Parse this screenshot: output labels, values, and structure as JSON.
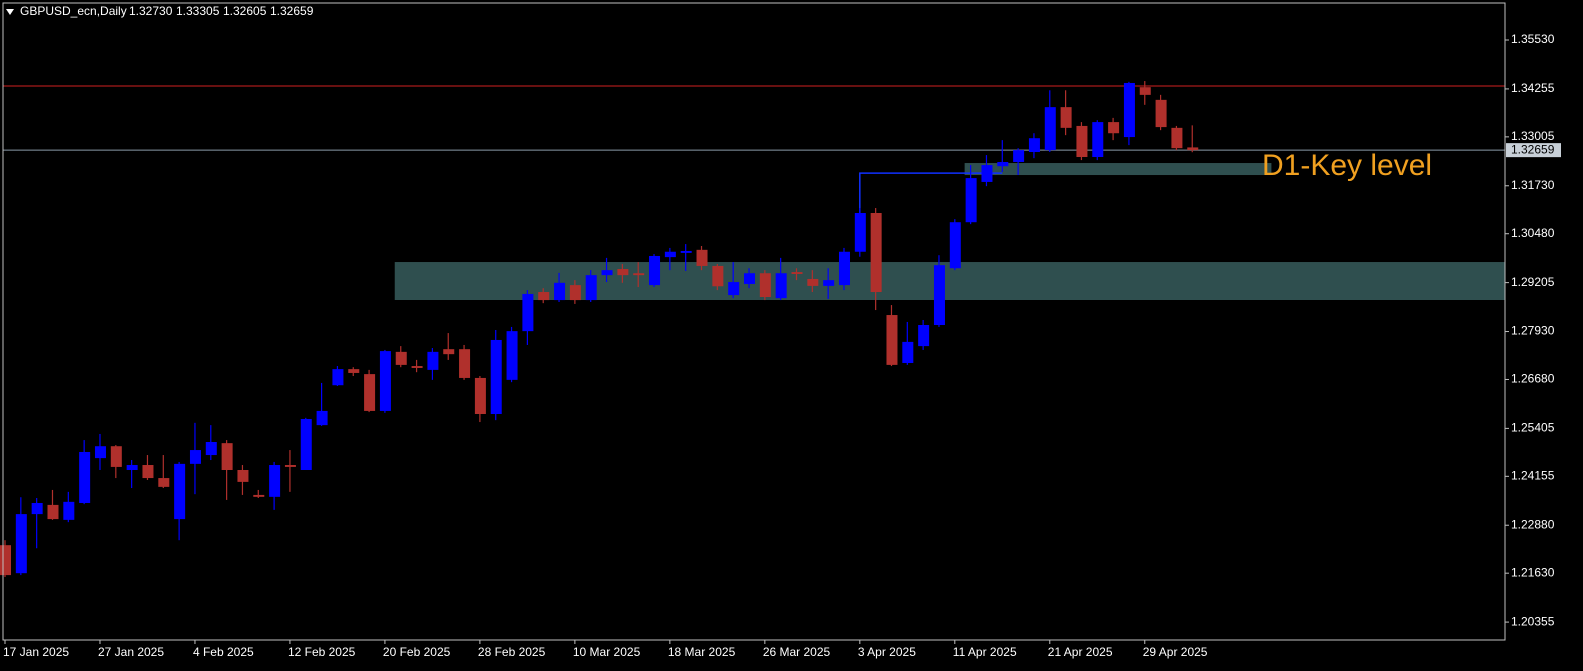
{
  "chart_data": {
    "type": "candlestick",
    "header": {
      "symbol": "GBPUSD_ecn,Daily",
      "ohlc_labels": [
        "1.32730",
        "1.33305",
        "1.32605",
        "1.32659"
      ]
    },
    "categories": [
      "17 Jan 2025",
      null,
      null,
      null,
      null,
      null,
      "27 Jan 2025",
      null,
      null,
      null,
      null,
      null,
      "4 Feb 2025",
      null,
      null,
      null,
      null,
      null,
      "12 Feb 2025",
      null,
      null,
      null,
      null,
      null,
      "20 Feb 2025",
      null,
      null,
      null,
      null,
      null,
      "28 Feb 2025",
      null,
      null,
      null,
      null,
      null,
      "10 Mar 2025",
      null,
      null,
      null,
      null,
      null,
      "18 Mar 2025",
      null,
      null,
      null,
      null,
      null,
      "26 Mar 2025",
      null,
      null,
      null,
      null,
      null,
      "3 Apr 2025",
      null,
      null,
      null,
      null,
      null,
      "11 Apr 2025",
      null,
      null,
      null,
      null,
      null,
      "21 Apr 2025",
      null,
      null,
      null,
      null,
      null,
      "29 Apr 2025",
      null,
      null,
      null
    ],
    "open": [
      1.2236,
      1.2163,
      1.2317,
      1.2341,
      1.2302,
      1.2346,
      1.2463,
      1.2494,
      1.2432,
      1.2445,
      1.2411,
      1.2304,
      1.2448,
      1.2471,
      1.2502,
      1.2432,
      1.2367,
      1.2362,
      1.2445,
      1.2432,
      1.2549,
      1.2653,
      1.2695,
      1.2682,
      1.2586,
      1.274,
      1.2703,
      1.2693,
      1.2747,
      1.2747,
      1.2672,
      1.2578,
      1.2667,
      1.2794,
      1.2896,
      1.2875,
      1.2914,
      1.2875,
      1.294,
      1.2956,
      1.2945,
      1.2914,
      1.2987,
      1.2998,
      1.3006,
      1.2964,
      1.2888,
      1.2917,
      1.2945,
      1.288,
      1.2948,
      1.293,
      1.2912,
      1.2914,
      1.3001,
      1.3102,
      1.2836,
      1.2711,
      1.2755,
      1.281,
      1.2958,
      1.3078,
      1.3183,
      1.3224,
      1.3235,
      1.3261,
      1.3266,
      1.3378,
      1.3329,
      1.3248,
      1.3339,
      1.33,
      1.343,
      1.3397,
      1.3324,
      1.3273
    ],
    "high": [
      1.2249,
      1.2361,
      1.2359,
      1.238,
      1.2375,
      1.251,
      1.2526,
      1.2497,
      1.2458,
      1.2471,
      1.2471,
      1.2453,
      1.2555,
      1.2549,
      1.251,
      1.2445,
      1.238,
      1.2453,
      1.2484,
      1.2568,
      1.2659,
      1.2703,
      1.27,
      1.2693,
      1.2745,
      1.2755,
      1.2719,
      1.275,
      1.2789,
      1.2758,
      1.2677,
      1.2797,
      1.2805,
      1.2901,
      1.2906,
      1.2946,
      1.2927,
      1.2953,
      1.2985,
      1.2969,
      1.2974,
      1.2995,
      1.3011,
      1.3021,
      1.3016,
      1.2969,
      1.2974,
      1.2958,
      1.2953,
      1.2985,
      1.2958,
      1.2953,
      1.2958,
      1.3011,
      1.3115,
      1.3115,
      1.2862,
      1.2818,
      1.2823,
      1.2992,
      1.3086,
      1.3227,
      1.3253,
      1.3292,
      1.3271,
      1.331,
      1.3422,
      1.3422,
      1.3339,
      1.3344,
      1.335,
      1.3444,
      1.3446,
      1.341,
      1.3329,
      1.33305
    ],
    "low": [
      1.2153,
      1.2158,
      1.2228,
      1.2302,
      1.2296,
      1.2343,
      1.2432,
      1.2411,
      1.2385,
      1.2406,
      1.2385,
      1.2249,
      1.2369,
      1.2458,
      1.2354,
      1.2367,
      1.2359,
      1.2328,
      1.2375,
      1.2432,
      1.2547,
      1.2651,
      1.2677,
      1.2583,
      1.2581,
      1.27,
      1.2687,
      1.2667,
      1.2719,
      1.2667,
      1.2557,
      1.2562,
      1.2661,
      1.2758,
      1.2867,
      1.287,
      1.2865,
      1.287,
      1.2922,
      1.292,
      1.2909,
      1.2909,
      1.2953,
      1.2951,
      1.2953,
      1.2901,
      1.288,
      1.2906,
      1.2875,
      1.2875,
      1.2927,
      1.2896,
      1.2878,
      1.2901,
      1.2988,
      1.2849,
      1.2703,
      1.2706,
      1.2745,
      1.2805,
      1.2953,
      1.3073,
      1.3172,
      1.3209,
      1.3201,
      1.3245,
      1.3261,
      1.3305,
      1.324,
      1.324,
      1.3292,
      1.3279,
      1.3384,
      1.3318,
      1.3266,
      1.32605
    ],
    "close": [
      1.2158,
      1.2317,
      1.2346,
      1.2304,
      1.2349,
      1.2479,
      1.2494,
      1.244,
      1.2445,
      1.2411,
      1.2388,
      1.2448,
      1.2484,
      1.2505,
      1.2432,
      1.2401,
      1.2362,
      1.2445,
      1.244,
      1.2565,
      1.2586,
      1.2695,
      1.2685,
      1.2586,
      1.2742,
      1.2706,
      1.2698,
      1.274,
      1.2734,
      1.2672,
      1.2578,
      1.2771,
      1.2794,
      1.2891,
      1.2875,
      1.292,
      1.2875,
      1.294,
      1.2953,
      1.294,
      1.294,
      1.299,
      1.3001,
      1.3003,
      1.2964,
      1.2911,
      1.2922,
      1.2945,
      1.2883,
      1.2945,
      1.2943,
      1.2912,
      1.2927,
      1.3001,
      1.3102,
      1.2896,
      1.2706,
      1.2766,
      1.281,
      1.2966,
      1.3078,
      1.3193,
      1.3227,
      1.3235,
      1.3266,
      1.3297,
      1.3378,
      1.3324,
      1.3248,
      1.3339,
      1.331,
      1.3441,
      1.341,
      1.3326,
      1.3271,
      1.32659
    ],
    "bull_color": "#0000ff",
    "bear_color": "#b0302c",
    "ylim": [
      1.19888,
      1.36495
    ],
    "yticks": [
      {
        "value": 1.20355,
        "label": "1.20355"
      },
      {
        "value": 1.2163,
        "label": "1.21630"
      },
      {
        "value": 1.2288,
        "label": "1.22880"
      },
      {
        "value": 1.24155,
        "label": "1.24155"
      },
      {
        "value": 1.25405,
        "label": "1.25405"
      },
      {
        "value": 1.2668,
        "label": "1.26680"
      },
      {
        "value": 1.2793,
        "label": "1.27930"
      },
      {
        "value": 1.29205,
        "label": "1.29205"
      },
      {
        "value": 1.3048,
        "label": "1.30480"
      },
      {
        "value": 1.3173,
        "label": "1.31730"
      },
      {
        "value": 1.33005,
        "label": "1.33005"
      },
      {
        "value": 1.34255,
        "label": "1.34255"
      },
      {
        "value": 1.3553,
        "label": "1.35530"
      }
    ],
    "price_line": 1.32659,
    "resistance_line": 1.3433,
    "zones": [
      {
        "top": 1.29742,
        "bottom": 1.28752,
        "start_index": 25
      },
      {
        "top": 1.32323,
        "bottom": 1.3201,
        "start_index": 61,
        "end_index": 80
      }
    ],
    "key_line": {
      "value": 1.3206,
      "start_index": 54,
      "end_index": 63
    },
    "annotation": "D1-Key level"
  }
}
